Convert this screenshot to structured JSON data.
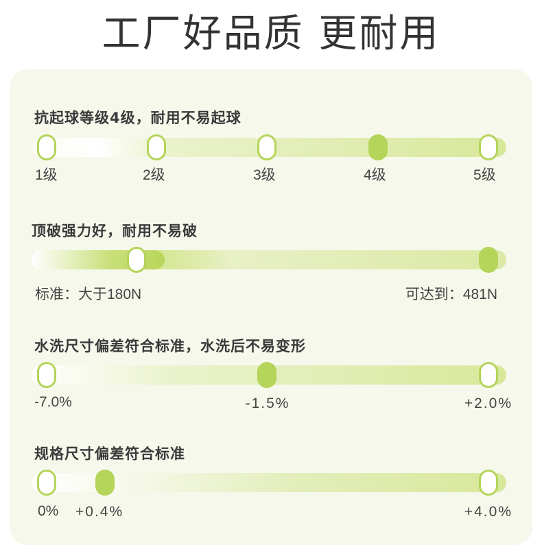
{
  "page_title": "工厂好品质 更耐用",
  "colors": {
    "accent": "#b4d45a",
    "fill": "#b9d65a",
    "track": "#e4eebb",
    "panel": "#f6f8ec"
  },
  "metrics": [
    {
      "heading": "抗起球等级4级，耐用不易起球",
      "labels": [
        "1级",
        "2级",
        "3级",
        "4级",
        "5级"
      ]
    },
    {
      "heading": "顶破强力好，耐用不易破",
      "labels": [
        "标准：大于180N",
        "可达到：481N"
      ]
    },
    {
      "heading": "水洗尺寸偏差符合标准，水洗后不易变形",
      "labels": [
        "-7.0%",
        "-1.5%",
        "+2.0%"
      ]
    },
    {
      "heading": "规格尺寸偏差符合标准",
      "labels": [
        "0%",
        "+0.4%",
        "+4.0%"
      ]
    }
  ]
}
